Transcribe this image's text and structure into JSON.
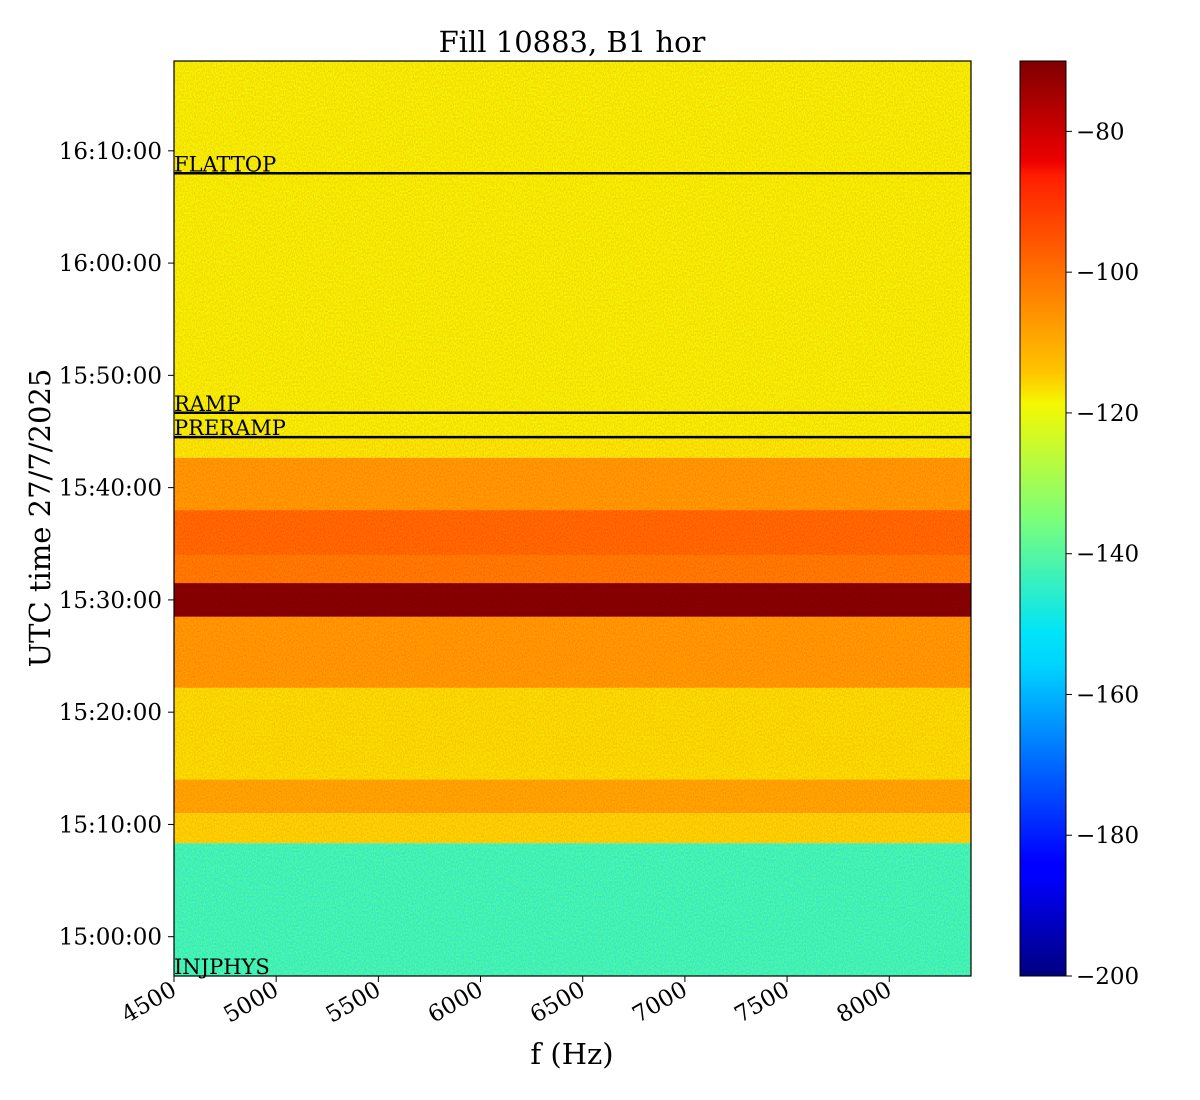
{
  "chart_data": {
    "type": "heatmap",
    "title": "Fill 10883, B1 hor",
    "xlabel": "f (Hz)",
    "ylabel": "UTC time 27/7/2025",
    "xlim": [
      4500,
      8400
    ],
    "ylim_time": [
      "14:56:30",
      "16:18:00"
    ],
    "x_ticks": [
      "4500",
      "5000",
      "5500",
      "6000",
      "6500",
      "7000",
      "7500",
      "8000"
    ],
    "y_ticks": [
      "15:00:00",
      "15:10:00",
      "15:20:00",
      "15:30:00",
      "15:40:00",
      "15:50:00",
      "16:00:00",
      "16:10:00"
    ],
    "colorbar": {
      "colormap": "jet",
      "min": -200,
      "max": -70,
      "ticks": [
        "−80",
        "−100",
        "−120",
        "−140",
        "−160",
        "−180",
        "−200"
      ]
    },
    "phase_markers": [
      {
        "label": "FLATTOP",
        "time": "16:08:00"
      },
      {
        "label": "RAMP",
        "time": "15:46:40"
      },
      {
        "label": "PRERAMP",
        "time": "15:44:30"
      },
      {
        "label": "INJPHYS",
        "time": "14:56:30"
      }
    ],
    "bands": [
      {
        "from": "14:56:30",
        "to": "15:08:20",
        "level_dB": -140
      },
      {
        "from": "15:08:20",
        "to": "15:11:00",
        "level_dB": -116
      },
      {
        "from": "15:11:00",
        "to": "15:14:00",
        "level_dB": -110
      },
      {
        "from": "15:14:00",
        "to": "15:22:10",
        "level_dB": -117
      },
      {
        "from": "15:22:10",
        "to": "15:28:30",
        "level_dB": -108
      },
      {
        "from": "15:28:30",
        "to": "15:31:30",
        "level_dB": -70
      },
      {
        "from": "15:31:30",
        "to": "15:34:00",
        "level_dB": -103
      },
      {
        "from": "15:34:00",
        "to": "15:38:00",
        "level_dB": -100
      },
      {
        "from": "15:38:00",
        "to": "15:42:40",
        "level_dB": -108
      },
      {
        "from": "15:42:40",
        "to": "15:44:30",
        "level_dB": -118
      },
      {
        "from": "15:44:30",
        "to": "16:18:00",
        "level_dB": -119
      }
    ]
  }
}
